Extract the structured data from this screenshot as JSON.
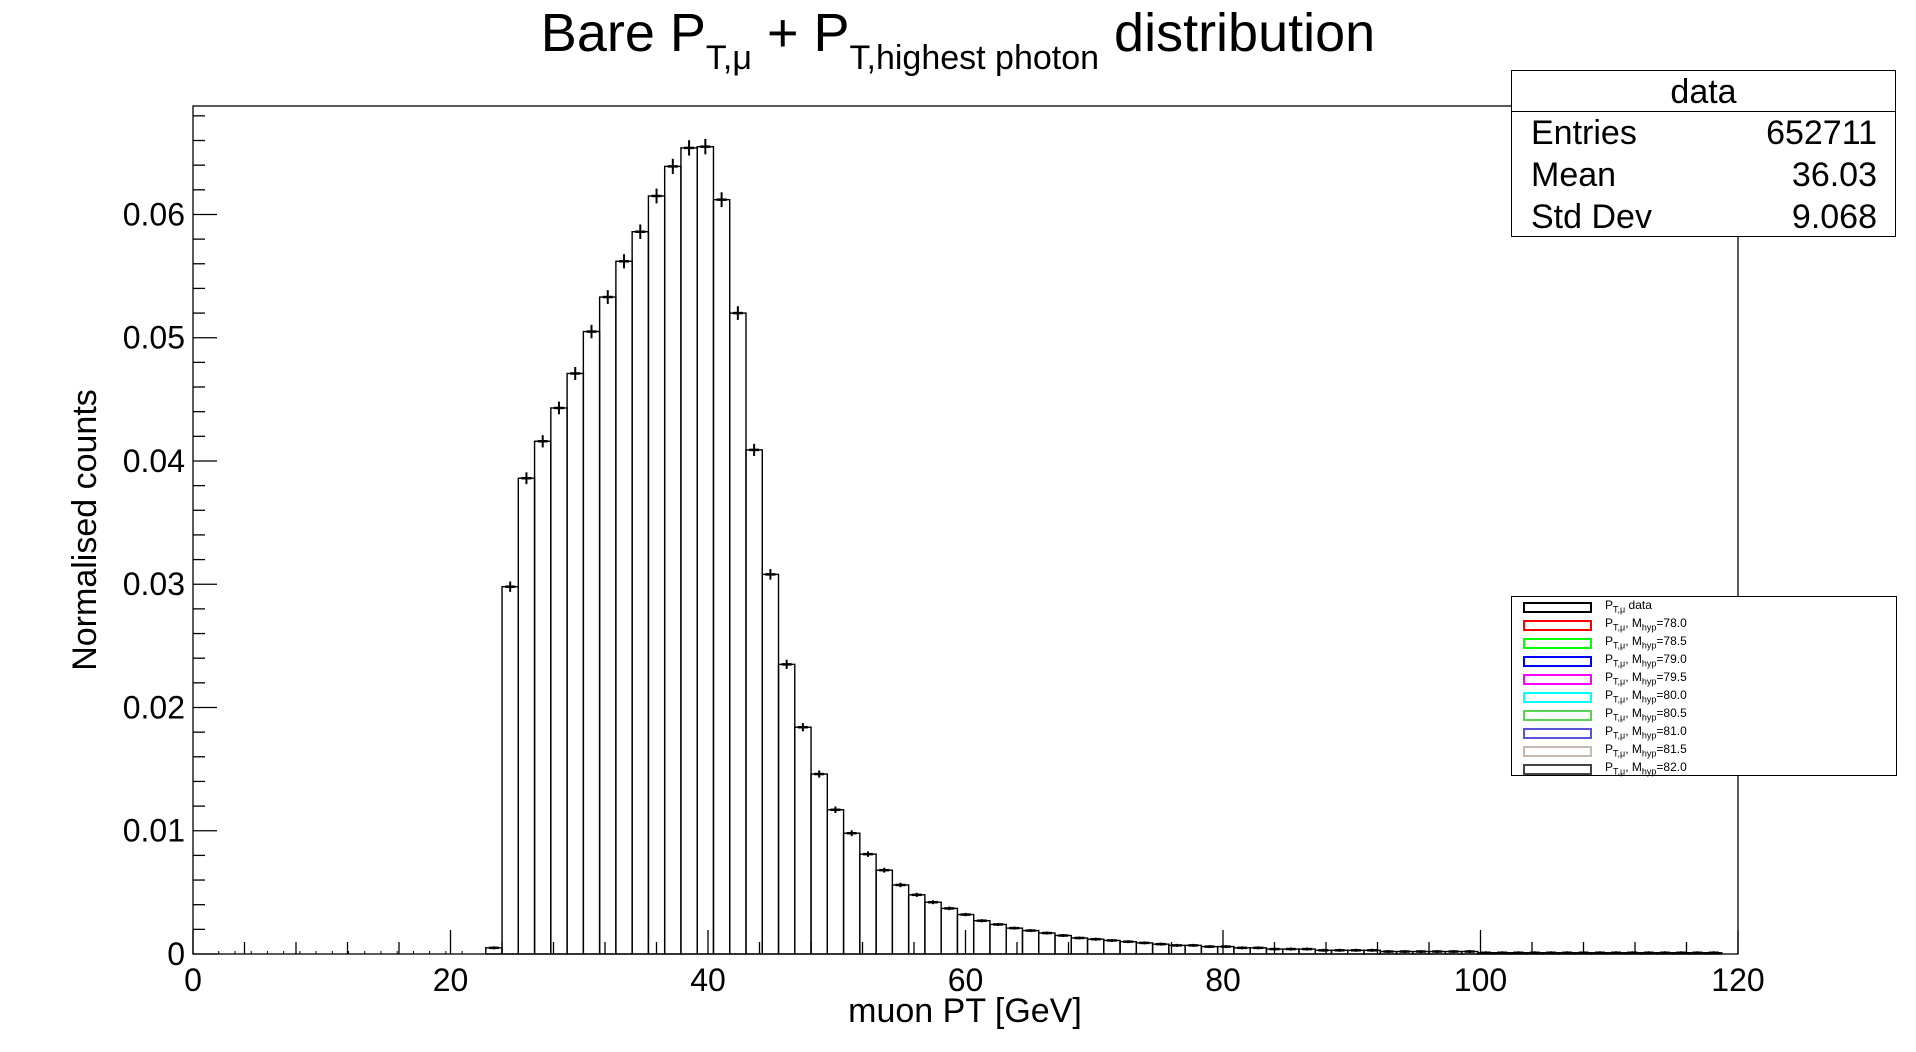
{
  "chart_data": {
    "type": "bar",
    "title_main": "Bare P",
    "title_sub1": "T,μ",
    "title_mid": " + P",
    "title_sub2": "T,highest photon",
    "title_end": " distribution",
    "xlabel": "muon PT [GeV]",
    "ylabel": "Normalised counts",
    "xlim": [
      0,
      120
    ],
    "ylim": [
      0,
      0.0688
    ],
    "x_ticks": [
      "0",
      "20",
      "40",
      "60",
      "80",
      "100",
      "120"
    ],
    "y_ticks": [
      "0",
      "0.01",
      "0.02",
      "0.03",
      "0.04",
      "0.05",
      "0.06"
    ],
    "bin_width": 1.2632,
    "bin_start": 22.74,
    "values": [
      0.0005,
      0.0298,
      0.0386,
      0.0416,
      0.0443,
      0.0471,
      0.0505,
      0.0533,
      0.0562,
      0.0586,
      0.0615,
      0.0639,
      0.0654,
      0.0655,
      0.0612,
      0.052,
      0.0409,
      0.0308,
      0.0235,
      0.0184,
      0.0146,
      0.0117,
      0.0098,
      0.0081,
      0.0068,
      0.0056,
      0.0048,
      0.0042,
      0.0037,
      0.0032,
      0.0027,
      0.0024,
      0.0021,
      0.0019,
      0.0017,
      0.0015,
      0.0013,
      0.0012,
      0.0011,
      0.001,
      0.0009,
      0.0008,
      0.0007,
      0.0007,
      0.0006,
      0.0006,
      0.0005,
      0.0005,
      0.0004,
      0.0004,
      0.0004,
      0.0003,
      0.0003,
      0.0003,
      0.0003,
      0.0002,
      0.0002,
      0.0002,
      0.0002,
      0.0002,
      0.0002,
      0.0001,
      0.0001,
      0.0001,
      0.0001,
      0.0001,
      0.0001,
      0.0001,
      0.0001,
      0.0001,
      0.0001,
      0.0001,
      0.0001,
      0.0001,
      0.0001,
      0.0001
    ],
    "line_color": "#000000",
    "grid": false,
    "stats_box": {
      "title": "data",
      "rows": [
        {
          "label": "Entries",
          "value": "652711"
        },
        {
          "label": "Mean",
          "value": "36.03"
        },
        {
          "label": "Std Dev",
          "value": "9.068"
        }
      ]
    },
    "legend": [
      {
        "pre": "P",
        "sub": "T,μ",
        "post": " data",
        "color": "#000000"
      },
      {
        "pre": "P",
        "sub": "T,μ",
        "post": ", M",
        "sub2": "hyp",
        "post2": "=78.0",
        "color": "#ff0000"
      },
      {
        "pre": "P",
        "sub": "T,μ",
        "post": ", M",
        "sub2": "hyp",
        "post2": "=78.5",
        "color": "#00ff00"
      },
      {
        "pre": "P",
        "sub": "T,μ",
        "post": ", M",
        "sub2": "hyp",
        "post2": "=79.0",
        "color": "#0000ff"
      },
      {
        "pre": "P",
        "sub": "T,μ",
        "post": ", M",
        "sub2": "hyp",
        "post2": "=79.5",
        "color": "#ff00ff"
      },
      {
        "pre": "P",
        "sub": "T,μ",
        "post": ", M",
        "sub2": "hyp",
        "post2": "=80.0",
        "color": "#00ffff"
      },
      {
        "pre": "P",
        "sub": "T,μ",
        "post": ", M",
        "sub2": "hyp",
        "post2": "=80.5",
        "color": "#59d354"
      },
      {
        "pre": "P",
        "sub": "T,μ",
        "post": ", M",
        "sub2": "hyp",
        "post2": "=81.0",
        "color": "#5954d8"
      },
      {
        "pre": "P",
        "sub": "T,μ",
        "post": ", M",
        "sub2": "hyp",
        "post2": "=81.5",
        "color": "#c6bab0"
      },
      {
        "pre": "P",
        "sub": "T,μ",
        "post": ", M",
        "sub2": "hyp",
        "post2": "=82.0",
        "color": "#444444"
      }
    ]
  }
}
